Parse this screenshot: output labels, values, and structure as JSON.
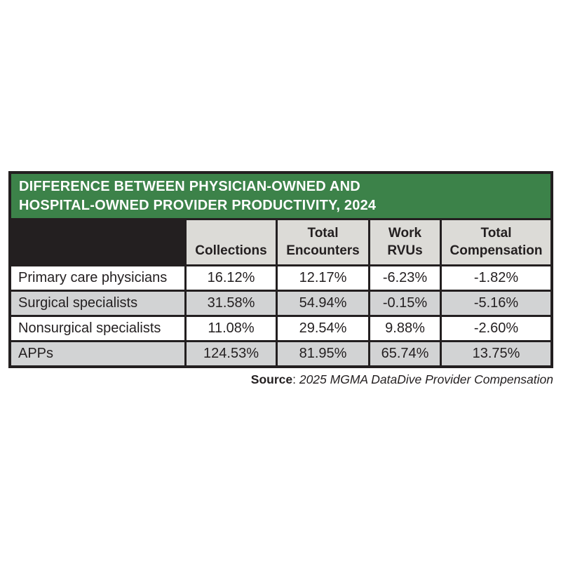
{
  "table": {
    "title": "DIFFERENCE BETWEEN PHYSICIAN-OWNED AND\nHOSPITAL-OWNED PROVIDER PRODUCTIVITY, 2024",
    "columns": [
      "Collections",
      "Total\nEncounters",
      "Work\nRVUs",
      "Total\nCompensation"
    ],
    "rows": [
      {
        "label": "Primary care physicians",
        "values": [
          "16.12%",
          "12.17%",
          "-6.23%",
          "-1.82%"
        ]
      },
      {
        "label": "Surgical specialists",
        "values": [
          "31.58%",
          "54.94%",
          "-0.15%",
          "-5.16%"
        ]
      },
      {
        "label": "Nonsurgical specialists",
        "values": [
          "11.08%",
          "29.54%",
          "9.88%",
          "-2.60%"
        ]
      },
      {
        "label": "APPs",
        "values": [
          "124.53%",
          "81.95%",
          "65.74%",
          "13.75%"
        ]
      }
    ]
  },
  "source": {
    "label": "Source",
    "separator": ": ",
    "citation": "2025 MGMA DataDive Provider Compensation"
  },
  "colors": {
    "title_green": "#3c8249",
    "border_black": "#231f20",
    "header_gray": "#dcdbd7",
    "row_gray": "#d2d3d4",
    "row_white": "#ffffff",
    "title_text": "#ffffff",
    "body_text": "#231f20"
  },
  "chart_data": {
    "type": "table",
    "title": "Difference between physician-owned and hospital-owned provider productivity, 2024",
    "categories": [
      "Primary care physicians",
      "Surgical specialists",
      "Nonsurgical specialists",
      "APPs"
    ],
    "series": [
      {
        "name": "Collections",
        "values": [
          16.12,
          31.58,
          11.08,
          124.53
        ]
      },
      {
        "name": "Total Encounters",
        "values": [
          12.17,
          54.94,
          29.54,
          81.95
        ]
      },
      {
        "name": "Work RVUs",
        "values": [
          -6.23,
          -0.15,
          9.88,
          65.74
        ]
      },
      {
        "name": "Total Compensation",
        "values": [
          -1.82,
          -5.16,
          -2.6,
          13.75
        ]
      }
    ],
    "unit": "%"
  }
}
